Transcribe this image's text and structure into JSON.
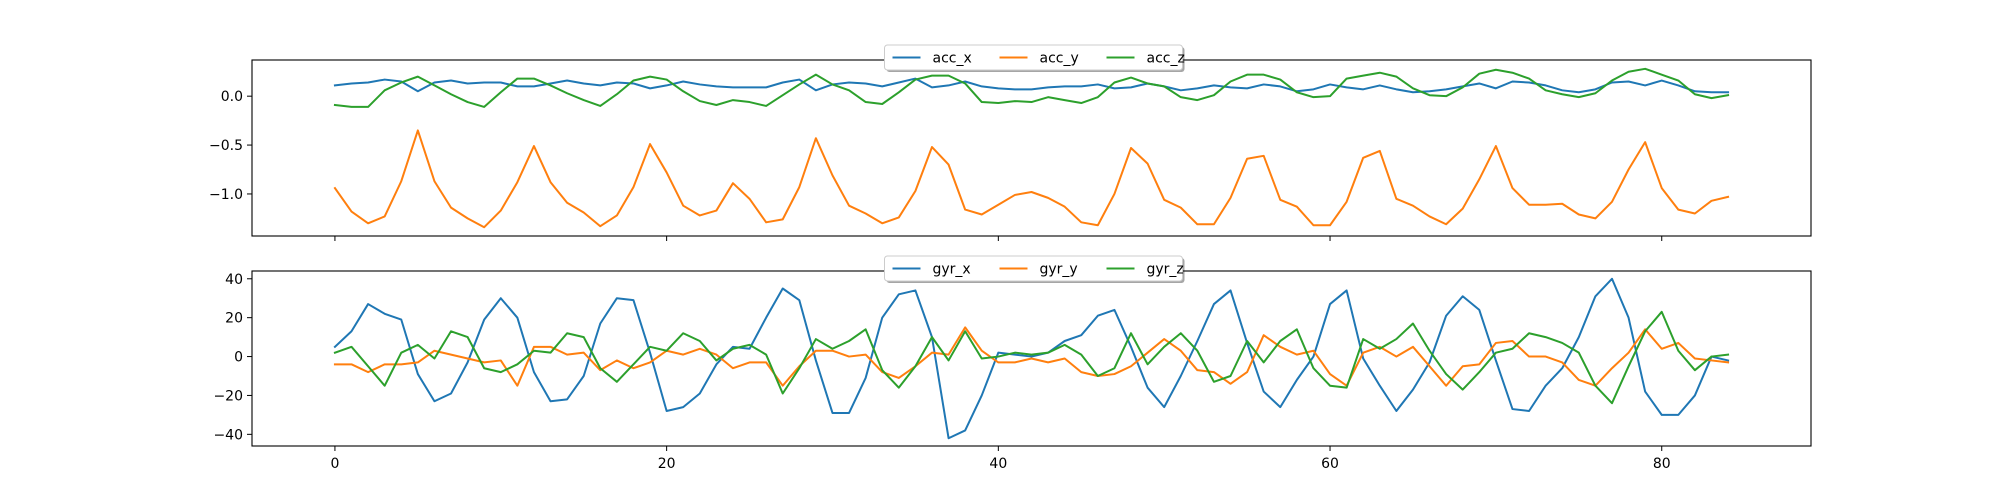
{
  "chart_data": [
    {
      "type": "line",
      "xlim": [
        -5,
        89
      ],
      "ylim": [
        -1.43,
        0.37
      ],
      "yticks": [
        0.0,
        -0.5,
        -1.0
      ],
      "ytick_labels": [
        "0.0",
        "−0.5",
        "−1.0"
      ],
      "legend": "top-center",
      "grid": false,
      "series": [
        {
          "name": "acc_x",
          "color": "#1f77b4",
          "values": [
            0.11,
            0.13,
            0.14,
            0.17,
            0.15,
            0.05,
            0.14,
            0.16,
            0.13,
            0.14,
            0.14,
            0.1,
            0.1,
            0.13,
            0.16,
            0.13,
            0.11,
            0.14,
            0.13,
            0.08,
            0.11,
            0.15,
            0.12,
            0.1,
            0.09,
            0.09,
            0.09,
            0.14,
            0.17,
            0.06,
            0.12,
            0.14,
            0.13,
            0.1,
            0.14,
            0.18,
            0.09,
            0.11,
            0.15,
            0.1,
            0.08,
            0.07,
            0.07,
            0.09,
            0.1,
            0.1,
            0.12,
            0.08,
            0.09,
            0.13,
            0.1,
            0.06,
            0.08,
            0.11,
            0.09,
            0.08,
            0.12,
            0.1,
            0.05,
            0.07,
            0.12,
            0.09,
            0.07,
            0.11,
            0.07,
            0.04,
            0.05,
            0.07,
            0.1,
            0.13,
            0.08,
            0.15,
            0.14,
            0.11,
            0.06,
            0.04,
            0.07,
            0.14,
            0.15,
            0.11,
            0.16,
            0.11,
            0.05,
            0.04,
            0.04
          ]
        },
        {
          "name": "acc_y",
          "color": "#ff7f0e",
          "values": [
            -0.94,
            -1.18,
            -1.3,
            -1.23,
            -0.87,
            -0.35,
            -0.87,
            -1.14,
            -1.25,
            -1.34,
            -1.17,
            -0.88,
            -0.51,
            -0.88,
            -1.09,
            -1.19,
            -1.33,
            -1.22,
            -0.93,
            -0.49,
            -0.78,
            -1.12,
            -1.22,
            -1.17,
            -0.89,
            -1.05,
            -1.29,
            -1.26,
            -0.93,
            -0.43,
            -0.81,
            -1.12,
            -1.2,
            -1.3,
            -1.24,
            -0.97,
            -0.52,
            -0.7,
            -1.16,
            -1.21,
            -1.11,
            -1.01,
            -0.98,
            -1.04,
            -1.13,
            -1.29,
            -1.32,
            -1.0,
            -0.53,
            -0.69,
            -1.06,
            -1.14,
            -1.31,
            -1.31,
            -1.04,
            -0.64,
            -0.61,
            -1.06,
            -1.13,
            -1.32,
            -1.32,
            -1.08,
            -0.63,
            -0.56,
            -1.05,
            -1.12,
            -1.23,
            -1.31,
            -1.15,
            -0.85,
            -0.51,
            -0.94,
            -1.11,
            -1.11,
            -1.1,
            -1.21,
            -1.25,
            -1.08,
            -0.75,
            -0.47,
            -0.94,
            -1.16,
            -1.2,
            -1.07,
            -1.03
          ]
        },
        {
          "name": "acc_z",
          "color": "#2ca02c",
          "values": [
            -0.09,
            -0.11,
            -0.11,
            0.06,
            0.14,
            0.2,
            0.11,
            0.02,
            -0.06,
            -0.11,
            0.04,
            0.18,
            0.18,
            0.11,
            0.03,
            -0.04,
            -0.1,
            0.02,
            0.16,
            0.2,
            0.17,
            0.05,
            -0.05,
            -0.09,
            -0.04,
            -0.06,
            -0.1,
            0.01,
            0.12,
            0.22,
            0.12,
            0.06,
            -0.06,
            -0.08,
            0.04,
            0.17,
            0.21,
            0.21,
            0.13,
            -0.06,
            -0.07,
            -0.05,
            -0.06,
            -0.01,
            -0.04,
            -0.07,
            -0.01,
            0.14,
            0.19,
            0.13,
            0.1,
            -0.01,
            -0.04,
            0.01,
            0.15,
            0.22,
            0.22,
            0.17,
            0.04,
            -0.01,
            0.0,
            0.18,
            0.21,
            0.24,
            0.2,
            0.08,
            0.01,
            0.0,
            0.09,
            0.23,
            0.27,
            0.24,
            0.18,
            0.06,
            0.02,
            -0.01,
            0.03,
            0.16,
            0.25,
            0.28,
            0.22,
            0.16,
            0.02,
            -0.02,
            0.01
          ]
        }
      ]
    },
    {
      "type": "line",
      "xlim": [
        -5,
        89
      ],
      "ylim": [
        -46,
        44
      ],
      "yticks": [
        40,
        20,
        0,
        -20,
        -40
      ],
      "ytick_labels": [
        "40",
        "20",
        "0",
        "−20",
        "−40"
      ],
      "xticks": [
        0,
        20,
        40,
        60,
        80
      ],
      "xtick_labels": [
        "0",
        "20",
        "40",
        "60",
        "80"
      ],
      "legend": "top-center",
      "grid": false,
      "series": [
        {
          "name": "gyr_x",
          "color": "#1f77b4",
          "values": [
            5,
            13,
            27,
            22,
            19,
            -9,
            -23,
            -19,
            -3,
            19,
            30,
            20,
            -8,
            -23,
            -22,
            -10,
            17,
            30,
            29,
            2,
            -28,
            -26,
            -19,
            -4,
            5,
            4,
            20,
            35,
            29,
            -2,
            -29,
            -29,
            -11,
            20,
            32,
            34,
            10,
            -42,
            -38,
            -20,
            2,
            1,
            0,
            2,
            8,
            11,
            21,
            24,
            5,
            -16,
            -26,
            -10,
            8,
            27,
            34,
            7,
            -18,
            -26,
            -12,
            0,
            27,
            34,
            -1,
            -15,
            -28,
            -17,
            -3,
            21,
            31,
            24,
            -2,
            -27,
            -28,
            -15,
            -6,
            10,
            31,
            40,
            20,
            -18,
            -30,
            -30,
            -20,
            0,
            -2
          ]
        },
        {
          "name": "gyr_y",
          "color": "#ff7f0e",
          "values": [
            -4,
            -4,
            -8,
            -4,
            -4,
            -3,
            3,
            1,
            -1,
            -3,
            -2,
            -15,
            5,
            5,
            1,
            2,
            -7,
            -2,
            -6,
            -3,
            3,
            1,
            4,
            1,
            -6,
            -3,
            -3,
            -15,
            -5,
            3,
            3,
            0,
            1,
            -8,
            -11,
            -5,
            2,
            1,
            15,
            3,
            -3,
            -3,
            -1,
            -3,
            -1,
            -8,
            -10,
            -9,
            -5,
            2,
            9,
            3,
            -7,
            -8,
            -14,
            -8,
            11,
            5,
            1,
            3,
            -9,
            -15,
            2,
            5,
            0,
            5,
            -5,
            -15,
            -5,
            -4,
            7,
            8,
            0,
            0,
            -3,
            -12,
            -15,
            -6,
            2,
            14,
            4,
            7,
            -1,
            -2,
            -3
          ]
        },
        {
          "name": "gyr_z",
          "color": "#2ca02c",
          "values": [
            2,
            5,
            -5,
            -15,
            2,
            6,
            -1,
            13,
            10,
            -6,
            -8,
            -4,
            3,
            2,
            12,
            10,
            -6,
            -13,
            -4,
            5,
            3,
            12,
            8,
            -2,
            4,
            6,
            1,
            -19,
            -6,
            9,
            4,
            8,
            14,
            -7,
            -16,
            -5,
            10,
            -2,
            13,
            -1,
            0,
            2,
            1,
            2,
            6,
            1,
            -10,
            -6,
            12,
            -4,
            5,
            12,
            3,
            -13,
            -10,
            8,
            -3,
            8,
            14,
            -6,
            -15,
            -16,
            9,
            4,
            9,
            17,
            3,
            -9,
            -17,
            -8,
            2,
            4,
            12,
            10,
            7,
            2,
            -15,
            -24,
            -5,
            13,
            23,
            3,
            -7,
            0,
            1
          ]
        }
      ]
    }
  ]
}
